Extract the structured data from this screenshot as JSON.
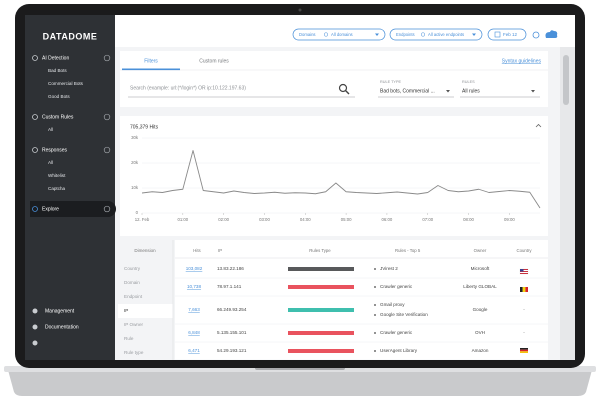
{
  "header": {
    "logo": "DATADOME",
    "filters": [
      {
        "label": "Domains",
        "value": "All domains"
      },
      {
        "label": "Endpoints",
        "value": "All active endpoints"
      }
    ],
    "date": "Feb 12"
  },
  "sidebar": {
    "sections": [
      {
        "label": "AI Detection",
        "items": [
          "Bad Bots",
          "Commercial Bots",
          "Good Bots"
        ]
      },
      {
        "label": "Custom Rules",
        "items": [
          "All"
        ]
      },
      {
        "label": "Responses",
        "items": [
          "All",
          "Whitelist",
          "Captcha"
        ]
      },
      {
        "label": "Explore",
        "items": []
      }
    ],
    "footer": [
      "Management",
      "Documentation"
    ]
  },
  "filters": {
    "tabs": [
      "Filters",
      "Custom rules"
    ],
    "link": "Syntax guidelines",
    "search_placeholder": "Search (example: url:(*/login*) OR ip:10.122.197.63)",
    "rule_type": {
      "label": "RULE TYPE",
      "value": "Bad bots, Commercial ..."
    },
    "rules": {
      "label": "RULES",
      "value": "All rules"
    }
  },
  "chart": {
    "type": "line",
    "title": "705,379 Hits",
    "color": "#8a8a8a",
    "grid": true,
    "x": [
      0,
      0.25,
      0.5,
      0.75,
      1,
      1.25,
      1.5,
      1.75,
      2,
      2.25,
      2.5,
      2.75,
      3,
      3.25,
      3.5,
      3.75,
      4,
      4.25,
      4.5,
      4.75,
      5,
      5.25,
      5.5,
      5.75,
      6,
      6.25,
      6.5,
      6.75,
      7,
      7.25,
      7.5,
      7.75,
      8,
      8.25,
      8.5,
      8.75,
      9,
      9.25,
      9.5,
      9.75
    ],
    "values": [
      8000,
      8500,
      8200,
      9000,
      9500,
      25000,
      9000,
      8500,
      8000,
      8800,
      8200,
      7800,
      8000,
      8300,
      7900,
      8100,
      8000,
      7700,
      8500,
      12000,
      8500,
      8200,
      8000,
      7800,
      8100,
      8400,
      8000,
      7600,
      8200,
      11000,
      9000,
      8500,
      8800,
      9500,
      8200,
      8600,
      9000,
      8700,
      8300,
      2000
    ],
    "xlim": [
      0,
      9.75
    ],
    "xticks": [
      {
        "value": 0,
        "label": "12. Feb"
      },
      {
        "value": 1,
        "label": "01:00"
      },
      {
        "value": 2,
        "label": "02:00"
      },
      {
        "value": 3,
        "label": "03:00"
      },
      {
        "value": 4,
        "label": "04:00"
      },
      {
        "value": 5,
        "label": "05:00"
      },
      {
        "value": 6,
        "label": "06:00"
      },
      {
        "value": 7,
        "label": "07:00"
      },
      {
        "value": 8,
        "label": "08:00"
      },
      {
        "value": 9,
        "label": "09:00"
      }
    ],
    "ylim": [
      0,
      30000
    ],
    "yticks": [
      0,
      {
        "value": 10000,
        "label": "10k"
      },
      {
        "value": 20000,
        "label": "20k"
      },
      {
        "value": 30000,
        "label": "30k"
      }
    ]
  },
  "table": {
    "dimension_header": "Dimension",
    "dimensions": [
      "Country",
      "Domain",
      "Endpoint",
      "IP",
      "IP Owner",
      "Rule",
      "Rule type"
    ],
    "columns": [
      "Hits",
      "IP",
      "Rules Type",
      "Rules - Top 5",
      "Owner",
      "Country"
    ],
    "rows": [
      {
        "hits": "103,082",
        "ip": "13.83.22.186",
        "rule_type_color": "#58595b",
        "rules": [
          "JVirest 2"
        ],
        "owner": "Microsoft"
      },
      {
        "hits": "10,738",
        "ip": "78.97.1.141",
        "rule_type_color": "#e9535e",
        "rules": [
          "Crawler generic"
        ],
        "owner": "Liberty GLOBAL"
      },
      {
        "hits": "7,663",
        "ip": "66.249.93.254",
        "rule_type_color": "#3fbfae",
        "rules": [
          "Gmail proxy",
          "Google Site Verification"
        ],
        "owner": "Google",
        "country": "-"
      },
      {
        "hits": "6,848",
        "ip": "5.135.155.101",
        "rule_type_color": "#e9535e",
        "rules": [
          "Crawler generic"
        ],
        "owner": "OVH",
        "country": "-"
      },
      {
        "hits": "6,471",
        "ip": "54.29.193.121",
        "rule_type_color": "#e9535e",
        "rules": [
          "UserAgent Library"
        ],
        "owner": "Amazon"
      }
    ]
  }
}
